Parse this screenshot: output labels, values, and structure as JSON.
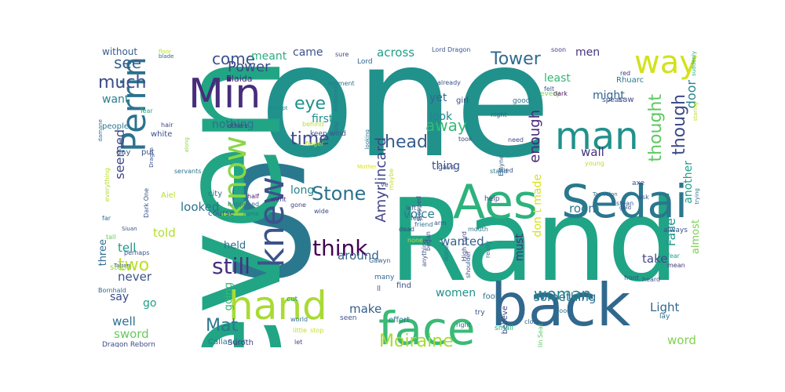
{
  "palette": {
    "purple": "#472d7b",
    "blue": "#33638d",
    "teal": "#21918c",
    "green": "#35b779",
    "yellow": "#bddf26",
    "light": "#90d743",
    "pale": "#d0e11c"
  },
  "words": [
    {
      "text": "one",
      "weight": 100,
      "color": "#21918c",
      "rot": 0
    },
    {
      "text": "S",
      "weight": 96,
      "color": "#2a788e",
      "rot": 0
    },
    {
      "text": "even",
      "weight": 82,
      "color": "#21a585",
      "rot": 90
    },
    {
      "text": "Rand",
      "weight": 80,
      "color": "#20a486",
      "rot": 0
    },
    {
      "text": "back",
      "weight": 48,
      "color": "#31688e",
      "rot": 0
    },
    {
      "text": "Aes",
      "weight": 38,
      "color": "#2db27d",
      "rot": 0
    },
    {
      "text": "Sedai",
      "weight": 34,
      "color": "#2a778e",
      "rot": 0
    },
    {
      "text": "face",
      "weight": 34,
      "color": "#3aba76",
      "rot": 0
    },
    {
      "text": "hand",
      "weight": 32,
      "color": "#a8db34",
      "rot": 0
    },
    {
      "text": "man",
      "weight": 28,
      "color": "#21918c",
      "rot": 0
    },
    {
      "text": "way",
      "weight": 28,
      "color": "#d2e21b",
      "rot": 0
    },
    {
      "text": "Min",
      "weight": 28,
      "color": "#472d7b",
      "rot": 0
    },
    {
      "text": "Perrin",
      "weight": 26,
      "color": "#2c728e",
      "rot": 90
    },
    {
      "text": "knew",
      "weight": 26,
      "color": "#3b528b",
      "rot": 90
    },
    {
      "text": "know",
      "weight": 24,
      "color": "#8bd646",
      "rot": 90
    },
    {
      "text": "Moiraine",
      "weight": 18,
      "color": "#a5db36",
      "rot": 0
    },
    {
      "text": "think",
      "weight": 18,
      "color": "#440154",
      "rot": 0
    },
    {
      "text": "still",
      "weight": 18,
      "color": "#46307e",
      "rot": 0
    },
    {
      "text": "Stone",
      "weight": 18,
      "color": "#2c718e",
      "rot": 0
    },
    {
      "text": "time",
      "weight": 18,
      "color": "#3e4989",
      "rot": 0
    },
    {
      "text": "woman",
      "weight": 16,
      "color": "#25848e",
      "rot": 0
    },
    {
      "text": "head",
      "weight": 16,
      "color": "#365c8d",
      "rot": 0
    },
    {
      "text": "Mat",
      "weight": 16,
      "color": "#2a788e",
      "rot": 0
    },
    {
      "text": "two",
      "weight": 16,
      "color": "#bddf26",
      "rot": 0
    },
    {
      "text": "Tower",
      "weight": 16,
      "color": "#306a8e",
      "rot": 0
    },
    {
      "text": "much",
      "weight": 16,
      "color": "#3d4e8a",
      "rot": 0
    },
    {
      "text": "come",
      "weight": 15,
      "color": "#3b528b",
      "rot": 0
    },
    {
      "text": "see",
      "weight": 15,
      "color": "#34618d",
      "rot": 0
    },
    {
      "text": "eye",
      "weight": 16,
      "color": "#21918c",
      "rot": 0
    },
    {
      "text": "away",
      "weight": 14,
      "color": "#38b977",
      "rot": 0
    },
    {
      "text": "thought",
      "weight": 16,
      "color": "#5ec962",
      "rot": 90
    },
    {
      "text": "though",
      "weight": 16,
      "color": "#3e4a89",
      "rot": 90
    },
    {
      "text": "Amyrlincard",
      "weight": 14,
      "color": "#414487",
      "rot": 90
    },
    {
      "text": "enough",
      "weight": 14,
      "color": "#482878",
      "rot": 90
    },
    {
      "text": "seemed",
      "weight": 14,
      "color": "#3f4788",
      "rot": 90
    },
    {
      "text": "Faile",
      "weight": 12,
      "color": "#1f988b",
      "rot": 90
    },
    {
      "text": "door",
      "weight": 12,
      "color": "#26828e",
      "rot": 90
    },
    {
      "text": "another",
      "weight": 11,
      "color": "#1f9e89",
      "rot": 90
    },
    {
      "text": "don t made",
      "weight": 10,
      "color": "#d8e219",
      "rot": 90
    },
    {
      "text": "must",
      "weight": 10,
      "color": "#46337f",
      "rot": 90
    },
    {
      "text": "almost",
      "weight": 9,
      "color": "#7ad151",
      "rot": 90
    },
    {
      "text": "three",
      "weight": 9,
      "color": "#2e6e8e",
      "rot": 90
    },
    {
      "text": "going",
      "weight": 8,
      "color": "#37b878",
      "rot": 90
    },
    {
      "text": "nothing",
      "weight": 12,
      "color": "#2c728e",
      "rot": 0
    },
    {
      "text": "first",
      "weight": 12,
      "color": "#21918c",
      "rot": 0
    },
    {
      "text": "look",
      "weight": 12,
      "color": "#25838e",
      "rot": 0
    },
    {
      "text": "thing",
      "weight": 12,
      "color": "#3a548c",
      "rot": 0
    },
    {
      "text": "yet",
      "weight": 12,
      "color": "#31688e",
      "rot": 0
    },
    {
      "text": "might",
      "weight": 12,
      "color": "#32648e",
      "rot": 0
    },
    {
      "text": "least",
      "weight": 10,
      "color": "#35b779",
      "rot": 0
    },
    {
      "text": "across",
      "weight": 11,
      "color": "#1f9e89",
      "rot": 0
    },
    {
      "text": "meant",
      "weight": 11,
      "color": "#29af7f",
      "rot": 0
    },
    {
      "text": "Power",
      "weight": 12,
      "color": "#3e4a89",
      "rot": 0
    },
    {
      "text": "want",
      "weight": 11,
      "color": "#277f8e",
      "rot": 0
    },
    {
      "text": "wall",
      "weight": 12,
      "color": "#46327e",
      "rot": 0
    },
    {
      "text": "room",
      "weight": 12,
      "color": "#2a788e",
      "rot": 0
    },
    {
      "text": "take",
      "weight": 12,
      "color": "#3f4788",
      "rot": 0
    },
    {
      "text": "voice",
      "weight": 12,
      "color": "#277e8e",
      "rot": 0
    },
    {
      "text": "long",
      "weight": 12,
      "color": "#25848e",
      "rot": 0
    },
    {
      "text": "looked",
      "weight": 12,
      "color": "#2c728e",
      "rot": 0
    },
    {
      "text": "wanted",
      "weight": 12,
      "color": "#34618d",
      "rot": 0
    },
    {
      "text": "told",
      "weight": 11,
      "color": "#b5de2b",
      "rot": 0
    },
    {
      "text": "tell",
      "weight": 11,
      "color": "#1f988b",
      "rot": 0
    },
    {
      "text": "held",
      "weight": 11,
      "color": "#2e6e8e",
      "rot": 0
    },
    {
      "text": "around",
      "weight": 12,
      "color": "#33638d",
      "rot": 0
    },
    {
      "text": "never",
      "weight": 12,
      "color": "#3b528b",
      "rot": 0
    },
    {
      "text": "women",
      "weight": 10,
      "color": "#21918c",
      "rot": 0
    },
    {
      "text": "something",
      "weight": 11,
      "color": "#2c728e",
      "rot": 0
    },
    {
      "text": "Light",
      "weight": 12,
      "color": "#31688e",
      "rot": 0
    },
    {
      "text": "say",
      "weight": 11,
      "color": "#3e4989",
      "rot": 0
    },
    {
      "text": "go",
      "weight": 11,
      "color": "#1fa088",
      "rot": 0
    },
    {
      "text": "make",
      "weight": 12,
      "color": "#355f8d",
      "rot": 0
    },
    {
      "text": "well",
      "weight": 12,
      "color": "#2d708e",
      "rot": 0
    },
    {
      "text": "sword",
      "weight": 11,
      "color": "#65cb5e",
      "rot": 0
    },
    {
      "text": "word",
      "weight": 12,
      "color": "#81d34d",
      "rot": 0
    },
    {
      "text": "men",
      "weight": 10,
      "color": "#463480",
      "rot": 0
    },
    {
      "text": "came",
      "weight": 9,
      "color": "#3b528b",
      "rot": 0
    },
    {
      "text": "without",
      "weight": 9,
      "color": "#365c8d",
      "rot": 0
    },
    {
      "text": "floor",
      "weight": 5,
      "color": "#b5de2b",
      "rot": 0
    },
    {
      "text": "blade",
      "weight": 5,
      "color": "#33638d",
      "rot": 0
    },
    {
      "text": "Elaida",
      "weight": 7,
      "color": "#482677",
      "rot": 0
    },
    {
      "text": "sure",
      "weight": 6,
      "color": "#414487",
      "rot": 0
    },
    {
      "text": "Lord Dragon",
      "weight": 5,
      "color": "#39568c",
      "rot": 0
    },
    {
      "text": "soon",
      "weight": 5,
      "color": "#433e85",
      "rot": 0
    },
    {
      "text": "red",
      "weight": 5,
      "color": "#46337f",
      "rot": 0
    },
    {
      "text": "Lord",
      "weight": 5,
      "color": "#31688e",
      "rot": 0
    },
    {
      "text": "moment",
      "weight": 5,
      "color": "#2a788e",
      "rot": 0
    },
    {
      "text": "already",
      "weight": 5,
      "color": "#3b528b",
      "rot": 0
    },
    {
      "text": "felt",
      "weight": 5,
      "color": "#365d8d",
      "rot": 0
    },
    {
      "text": "every",
      "weight": 5,
      "color": "#84d44b",
      "rot": 0
    },
    {
      "text": "Rhuarc",
      "weight": 6,
      "color": "#2a788e",
      "rot": 0
    },
    {
      "text": "saw",
      "weight": 6,
      "color": "#404688",
      "rot": 0
    },
    {
      "text": "suddenly",
      "weight": 4,
      "color": "#27ad81",
      "rot": 90
    },
    {
      "text": "staring",
      "weight": 4,
      "color": "#b8de29",
      "rot": 90
    },
    {
      "text": "trying",
      "weight": 4,
      "color": "#2c738e",
      "rot": 90
    },
    {
      "text": "good",
      "weight": 6,
      "color": "#2c718e",
      "rot": 0
    },
    {
      "text": "girl",
      "weight": 6,
      "color": "#3e4989",
      "rot": 0
    },
    {
      "text": "spear",
      "weight": 5,
      "color": "#3d4e8a",
      "rot": 0
    },
    {
      "text": "dark",
      "weight": 5,
      "color": "#481467",
      "rot": 0
    },
    {
      "text": "except",
      "weight": 5,
      "color": "#23888e",
      "rot": 0
    },
    {
      "text": "Tear",
      "weight": 5,
      "color": "#26ad81",
      "rot": 0
    },
    {
      "text": "damane",
      "weight": 4,
      "color": "#2c738e",
      "rot": 90
    },
    {
      "text": "people",
      "weight": 6,
      "color": "#2a788e",
      "rot": 0
    },
    {
      "text": "hair",
      "weight": 5,
      "color": "#414487",
      "rot": 0
    },
    {
      "text": "white",
      "weight": 6,
      "color": "#3b528b",
      "rot": 0
    },
    {
      "text": "others",
      "weight": 5,
      "color": "#453581",
      "rot": 0
    },
    {
      "text": "behind",
      "weight": 5,
      "color": "#b5de2b",
      "rot": 0
    },
    {
      "text": "keep wind",
      "weight": 5,
      "color": "#3b528b",
      "rot": 0
    },
    {
      "text": "night",
      "weight": 5,
      "color": "#34618d",
      "rot": 0
    },
    {
      "text": "took",
      "weight": 5,
      "color": "#404688",
      "rot": 0
    },
    {
      "text": "need",
      "weight": 5,
      "color": "#3d4e8a",
      "rot": 0
    },
    {
      "text": "day",
      "weight": 6,
      "color": "#355f8d",
      "rot": 0
    },
    {
      "text": "put",
      "weight": 6,
      "color": "#3b528b",
      "rot": 0
    },
    {
      "text": "servants",
      "weight": 5,
      "color": "#2c728e",
      "rot": 0
    },
    {
      "text": "gave",
      "weight": 6,
      "color": "#3e4a89",
      "rot": 0
    },
    {
      "text": "half",
      "weight": 5,
      "color": "#481c6e",
      "rot": 0
    },
    {
      "text": "went",
      "weight": 5,
      "color": "#46337f",
      "rot": 0
    },
    {
      "text": "happened",
      "weight": 5,
      "color": "#2c728e",
      "rot": 0
    },
    {
      "text": "city",
      "weight": 6,
      "color": "#2d708e",
      "rot": 0
    },
    {
      "text": "Aiel",
      "weight": 6,
      "color": "#b5de2b",
      "rot": 0
    },
    {
      "text": "course",
      "weight": 6,
      "color": "#3a548c",
      "rot": 0
    },
    {
      "text": "gone",
      "weight": 5,
      "color": "#433e85",
      "rot": 0
    },
    {
      "text": "wide",
      "weight": 5,
      "color": "#3e4a89",
      "rot": 0
    },
    {
      "text": "far",
      "weight": 5,
      "color": "#2c728e",
      "rot": 0
    },
    {
      "text": "Siuan",
      "weight": 5,
      "color": "#3b528b",
      "rot": 0
    },
    {
      "text": "tall",
      "weight": 5,
      "color": "#65cb5e",
      "rot": 0
    },
    {
      "text": "perhaps",
      "weight": 6,
      "color": "#3b528b",
      "rot": 0
    },
    {
      "text": "Tairen",
      "weight": 5,
      "color": "#3d4e8a",
      "rot": 0
    },
    {
      "text": "stood",
      "weight": 5,
      "color": "#90d743",
      "rot": 0
    },
    {
      "text": "Bornhald",
      "weight": 6,
      "color": "#31688e",
      "rot": 0
    },
    {
      "text": "Dragon Reborn",
      "weight": 5,
      "color": "#3e4989",
      "rot": 0
    },
    {
      "text": "Callandor",
      "weight": 5,
      "color": "#2a788e",
      "rot": 0
    },
    {
      "text": "Suroth",
      "weight": 5,
      "color": "#414487",
      "rot": 0
    },
    {
      "text": "let",
      "weight": 5,
      "color": "#414487",
      "rot": 0
    },
    {
      "text": "cut",
      "weight": 5,
      "color": "#1fa188",
      "rot": 0
    },
    {
      "text": "world",
      "weight": 5,
      "color": "#2c728e",
      "rot": 0
    },
    {
      "text": "little",
      "weight": 5,
      "color": "#bddf26",
      "rot": 0
    },
    {
      "text": "stop",
      "weight": 5,
      "color": "#c2df23",
      "rot": 0
    },
    {
      "text": "seen",
      "weight": 5,
      "color": "#3b528b",
      "rot": 0
    },
    {
      "text": "Gawyn",
      "weight": 5,
      "color": "#365c8d",
      "rot": 0
    },
    {
      "text": "many",
      "weight": 5,
      "color": "#31688e",
      "rot": 0
    },
    {
      "text": "ll",
      "weight": 6,
      "color": "#3b528b",
      "rot": 0
    },
    {
      "text": "find",
      "weight": 6,
      "color": "#3b528b",
      "rot": 0
    },
    {
      "text": "effort",
      "weight": 5,
      "color": "#2a788e",
      "rot": 0
    },
    {
      "text": "right",
      "weight": 6,
      "color": "#2c728e",
      "rot": 0
    },
    {
      "text": "fool",
      "weight": 6,
      "color": "#2c728e",
      "rot": 0
    },
    {
      "text": "believe",
      "weight": 5,
      "color": "#3e4989",
      "rot": 90
    },
    {
      "text": "try",
      "weight": 6,
      "color": "#3b528b",
      "rot": 0
    },
    {
      "text": "small",
      "weight": 5,
      "color": "#27ad81",
      "rot": 0
    },
    {
      "text": "close",
      "weight": 5,
      "color": "#34618d",
      "rot": 0
    },
    {
      "text": "Amyrlin Seat",
      "weight": 4,
      "color": "#5ec962",
      "rot": 90
    },
    {
      "text": "blood",
      "weight": 6,
      "color": "#2c718e",
      "rot": 0
    },
    {
      "text": "lay",
      "weight": 5,
      "color": "#2c728e",
      "rot": 0
    },
    {
      "text": "front",
      "weight": 5,
      "color": "#3e4a89",
      "rot": 0
    },
    {
      "text": "heard",
      "weight": 6,
      "color": "#3b528b",
      "rot": 0
    },
    {
      "text": "mean",
      "weight": 6,
      "color": "#46327e",
      "rot": 0
    },
    {
      "text": "fear",
      "weight": 6,
      "color": "#1f9e89",
      "rot": 0
    },
    {
      "text": "always",
      "weight": 6,
      "color": "#3b528b",
      "rot": 0
    },
    {
      "text": "Estean",
      "weight": 5,
      "color": "#365c8d",
      "rot": 0
    },
    {
      "text": "ask",
      "weight": 6,
      "color": "#3b528b",
      "rot": 0
    },
    {
      "text": "axe",
      "weight": 5,
      "color": "#3b528b",
      "rot": 0
    },
    {
      "text": "gold",
      "weight": 6,
      "color": "#3a548c",
      "rot": 0
    },
    {
      "text": "young",
      "weight": 4,
      "color": "#b5de2b",
      "rot": 0
    },
    {
      "text": "Elayne",
      "weight": 5,
      "color": "#355f8d",
      "rot": 90
    },
    {
      "text": "Tar Valon",
      "weight": 5,
      "color": "#31688e",
      "rot": 0
    },
    {
      "text": "stand",
      "weight": 5,
      "color": "#2a788e",
      "rot": 0
    },
    {
      "text": "tried",
      "weight": 6,
      "color": "#3b528b",
      "rot": 0
    },
    {
      "text": "help",
      "weight": 5,
      "color": "#414487",
      "rot": 0
    },
    {
      "text": "left",
      "weight": 5,
      "color": "#3b528b",
      "rot": 0
    },
    {
      "text": "feet",
      "weight": 6,
      "color": "#365c8d",
      "rot": 0
    },
    {
      "text": "friend",
      "weight": 6,
      "color": "#2c728e",
      "rot": 0
    },
    {
      "text": "dead",
      "weight": 5,
      "color": "#404688",
      "rot": 0
    },
    {
      "text": "none",
      "weight": 5,
      "color": "#c2df23",
      "rot": 0
    },
    {
      "text": "began",
      "weight": 5,
      "color": "#3b528b",
      "rot": 90
    },
    {
      "text": "arm",
      "weight": 5,
      "color": "#3b528b",
      "rot": 0
    },
    {
      "text": "really",
      "weight": 5,
      "color": "#2a788e",
      "rot": 90
    },
    {
      "text": "done",
      "weight": 5,
      "color": "#2a788e",
      "rot": 90
    },
    {
      "text": "High Lord",
      "weight": 5,
      "color": "#3e4a89",
      "rot": 90
    },
    {
      "text": "shoulder",
      "weight": 5,
      "color": "#3b528b",
      "rot": 90
    },
    {
      "text": "mouth",
      "weight": 5,
      "color": "#2a788e",
      "rot": 0
    },
    {
      "text": "stopped",
      "weight": 5,
      "color": "#3b528b",
      "rot": 90
    },
    {
      "text": "anything",
      "weight": 5,
      "color": "#3b528b",
      "rot": 90
    },
    {
      "text": "maybe",
      "weight": 4,
      "color": "#c2df23",
      "rot": 90
    },
    {
      "text": "ve",
      "weight": 5,
      "color": "#3b528b",
      "rot": 0
    },
    {
      "text": "side",
      "weight": 5,
      "color": "#2a788e",
      "rot": 90
    },
    {
      "text": "finger",
      "weight": 5,
      "color": "#b5de2b",
      "rot": 0
    },
    {
      "text": "Mother",
      "weight": 5,
      "color": "#d8e219",
      "rot": 0
    },
    {
      "text": "muttered",
      "weight": 4,
      "color": "#2a788e",
      "rot": 90
    },
    {
      "text": "looking",
      "weight": 4,
      "color": "#2a788e",
      "rot": 90
    },
    {
      "text": "everything",
      "weight": 4,
      "color": "#b5de2b",
      "rot": 90
    },
    {
      "text": "Dark One",
      "weight": 5,
      "color": "#3b528b",
      "rot": 90
    },
    {
      "text": "name",
      "weight": 5,
      "color": "#2a788e",
      "rot": 0
    },
    {
      "text": "along",
      "weight": 4,
      "color": "#90d743",
      "rot": 90
    },
    {
      "text": "Dragon",
      "weight": 4,
      "color": "#3b528b",
      "rot": 90
    },
    {
      "text": "thinking",
      "weight": 4,
      "color": "#3b528b",
      "rot": 90
    }
  ]
}
